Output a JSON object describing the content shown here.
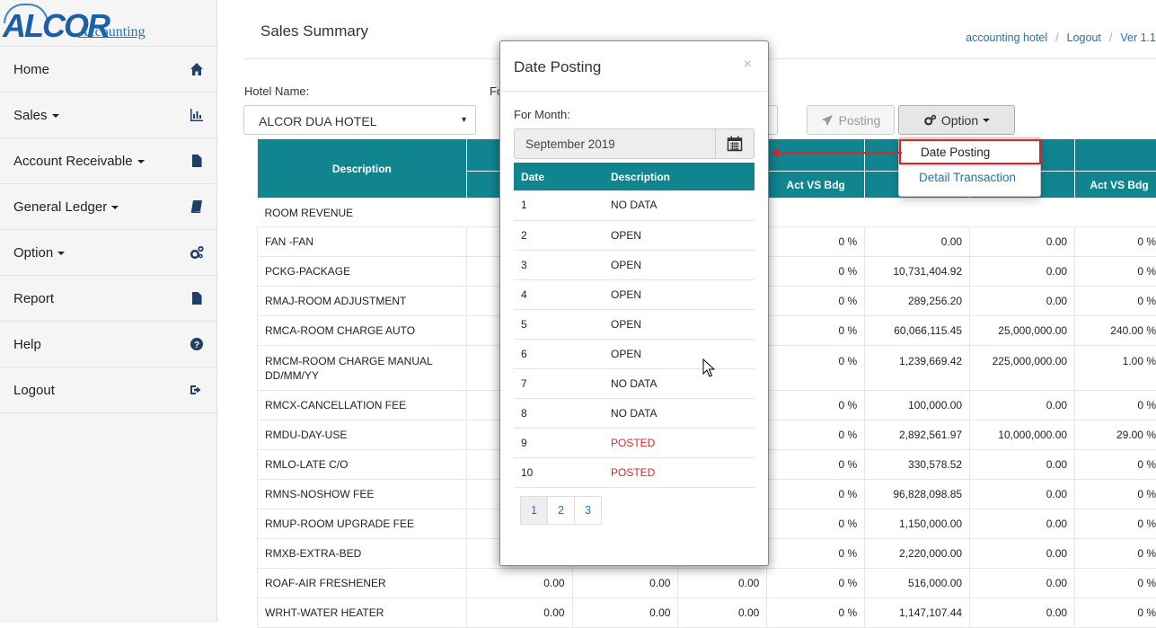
{
  "brand": {
    "logo_text": "ALCOR",
    "subtitle": "Accounting"
  },
  "sidebar": {
    "items": [
      {
        "label": "Home",
        "icon": "home-icon",
        "caret": false
      },
      {
        "label": "Sales",
        "icon": "bar-chart-icon",
        "caret": true
      },
      {
        "label": "Account Receivable",
        "icon": "file-icon",
        "caret": true
      },
      {
        "label": "General Ledger",
        "icon": "book-icon",
        "caret": true
      },
      {
        "label": "Option",
        "icon": "gears-icon",
        "caret": true
      },
      {
        "label": "Report",
        "icon": "file-icon",
        "caret": false
      },
      {
        "label": "Help",
        "icon": "question-icon",
        "caret": false
      },
      {
        "label": "Logout",
        "icon": "sign-out-icon",
        "caret": false
      }
    ]
  },
  "header": {
    "title": "Sales Summary",
    "user": "accounting hotel",
    "logout": "Logout",
    "version": "Ver 1.1"
  },
  "filters": {
    "hotel_label": "Hotel Name:",
    "hotel_value": "ALCOR DUA HOTEL",
    "for_label_fragment": "Fo",
    "hidden_button_fragment": "nt",
    "posting_label": "Posting",
    "option_label": "Option"
  },
  "option_menu": {
    "items": [
      "Date Posting",
      "Detail Transaction"
    ]
  },
  "table": {
    "header_description": "Description",
    "header_act_vs_bdg": "Act VS Bdg",
    "section": "ROOM REVENUE",
    "rows": [
      {
        "desc": "FAN -FAN",
        "c1": "",
        "c2": "",
        "c3": "00",
        "c4": "0 %",
        "c5": "0.00",
        "c6": "0.00",
        "c7": "0 %"
      },
      {
        "desc": "PCKG-PACKAGE",
        "c1": "",
        "c2": "",
        "c3": "00",
        "c4": "0 %",
        "c5": "10,731,404.92",
        "c6": "0.00",
        "c7": "0 %"
      },
      {
        "desc": "RMAJ-ROOM ADJUSTMENT",
        "c1": "",
        "c2": "",
        "c3": "00",
        "c4": "0 %",
        "c5": "289,256.20",
        "c6": "0.00",
        "c7": "0 %"
      },
      {
        "desc": "RMCA-ROOM CHARGE AUTO",
        "c1": "",
        "c2": "",
        "c3": "00",
        "c4": "0 %",
        "c5": "60,066,115.45",
        "c6": "25,000,000.00",
        "c7": "240.00 %"
      },
      {
        "desc": "RMCM-ROOM CHARGE MANUAL DD/MM/YY",
        "c1": "",
        "c2": "",
        "c3": "00",
        "c4": "0 %",
        "c5": "1,239,669.42",
        "c6": "225,000,000.00",
        "c7": "1.00 %"
      },
      {
        "desc": "RMCX-CANCELLATION FEE",
        "c1": "",
        "c2": "",
        "c3": "00",
        "c4": "0 %",
        "c5": "100,000.00",
        "c6": "0.00",
        "c7": "0 %"
      },
      {
        "desc": "RMDU-DAY-USE",
        "c1": "",
        "c2": "",
        "c3": "00",
        "c4": "0 %",
        "c5": "2,892,561.97",
        "c6": "10,000,000.00",
        "c7": "29.00 %"
      },
      {
        "desc": "RMLO-LATE C/O",
        "c1": "",
        "c2": "",
        "c3": "00",
        "c4": "0 %",
        "c5": "330,578.52",
        "c6": "0.00",
        "c7": "0 %"
      },
      {
        "desc": "RMNS-NOSHOW FEE",
        "c1": "",
        "c2": "",
        "c3": "00",
        "c4": "0 %",
        "c5": "96,828,098.85",
        "c6": "0.00",
        "c7": "0 %"
      },
      {
        "desc": "RMUP-ROOM UPGRADE FEE",
        "c1": "",
        "c2": "",
        "c3": "00",
        "c4": "0 %",
        "c5": "1,150,000.00",
        "c6": "0.00",
        "c7": "0 %"
      },
      {
        "desc": "RMXB-EXTRA-BED",
        "c1": "",
        "c2": "",
        "c3": "00",
        "c4": "0 %",
        "c5": "2,220,000.00",
        "c6": "0.00",
        "c7": "0 %"
      },
      {
        "desc": "ROAF-AIR FRESHENER",
        "c1": "0.00",
        "c2": "0.00",
        "c3": "0.00",
        "c4": "0 %",
        "c5": "516,000.00",
        "c6": "0.00",
        "c7": "0 %"
      },
      {
        "desc": "WRHT-WATER HEATER",
        "c1": "0.00",
        "c2": "0.00",
        "c3": "0.00",
        "c4": "0 %",
        "c5": "1,147,107.44",
        "c6": "0.00",
        "c7": "0 %"
      }
    ]
  },
  "modal": {
    "title": "Date Posting",
    "close": "×",
    "for_month_label": "For Month:",
    "month_value": "September 2019",
    "col_date": "Date",
    "col_description": "Description",
    "rows": [
      {
        "date": "1",
        "status": "NO DATA"
      },
      {
        "date": "2",
        "status": "OPEN"
      },
      {
        "date": "3",
        "status": "OPEN"
      },
      {
        "date": "4",
        "status": "OPEN"
      },
      {
        "date": "5",
        "status": "OPEN"
      },
      {
        "date": "6",
        "status": "OPEN"
      },
      {
        "date": "7",
        "status": "NO DATA"
      },
      {
        "date": "8",
        "status": "NO DATA"
      },
      {
        "date": "9",
        "status": "POSTED"
      },
      {
        "date": "10",
        "status": "POSTED"
      }
    ],
    "pages": [
      "1",
      "2",
      "3"
    ],
    "active_page": "1"
  },
  "colors": {
    "teal": "#108590",
    "navy": "#1f3f66",
    "posted_red": "#d9262b",
    "link_blue": "#2a6fad"
  }
}
